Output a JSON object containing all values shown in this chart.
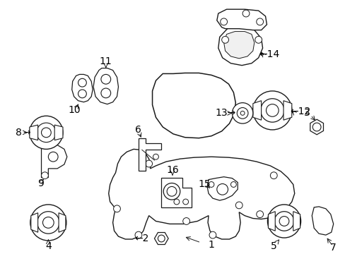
{
  "background_color": "#ffffff",
  "line_color": "#1a1a1a",
  "label_color": "#000000",
  "fig_width": 4.89,
  "fig_height": 3.6,
  "dpi": 100,
  "font_size": 9
}
